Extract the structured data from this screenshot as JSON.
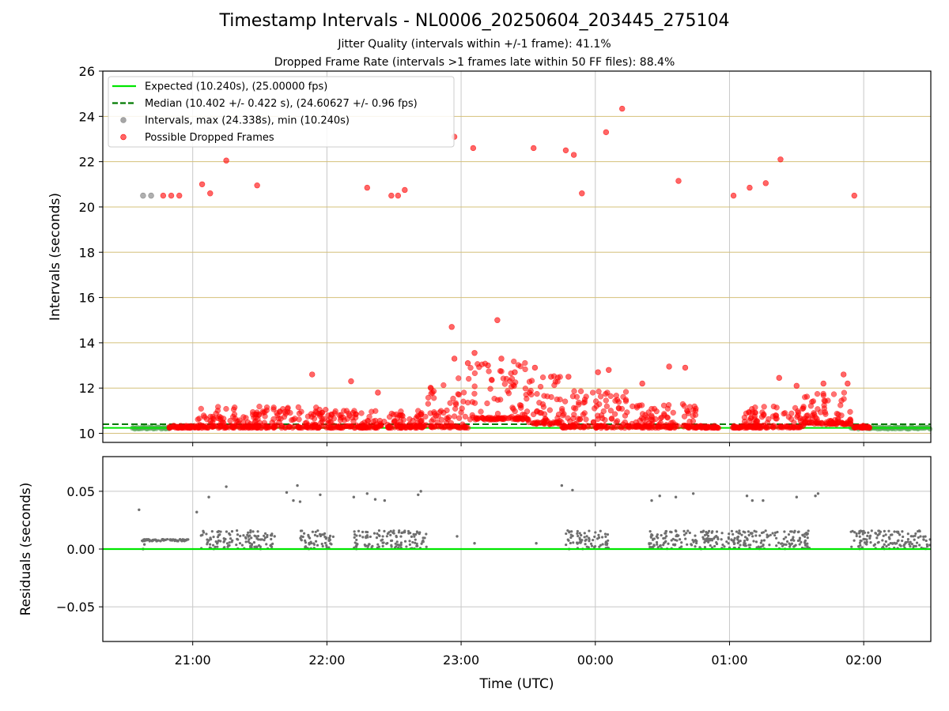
{
  "title": "Timestamp Intervals - NL0006_20250604_203445_275104",
  "subtitle1": "Jitter Quality (intervals within +/-1 frame): 41.1%",
  "subtitle2": "Dropped Frame Rate (intervals >1 frames late within 50 FF files): 88.4%",
  "colors": {
    "expected": "#00e600",
    "median": "#007a00",
    "intervals": "#a6a6a6",
    "dropped": "#ff0000",
    "residuals": "#6e6e6e",
    "hgrid_top": "#d4c07a",
    "grid": "#c8c8c8"
  },
  "chart_data": [
    {
      "type": "scatter",
      "name": "intervals",
      "ylabel": "Intervals (seconds)",
      "xlabel": "",
      "xlim": [
        20.33,
        26.5
      ],
      "ylim": [
        9.6,
        26
      ],
      "yticks": [
        10,
        12,
        14,
        16,
        18,
        20,
        22,
        24,
        26
      ],
      "ytick_labels": [
        "10",
        "12",
        "14",
        "16",
        "18",
        "20",
        "22",
        "24",
        "26"
      ],
      "xticks": [
        21,
        22,
        23,
        24,
        25,
        26
      ],
      "grid": true,
      "legend_position": "top-left",
      "legend": [
        "Expected (10.240s), (25.00000 fps)",
        "Median (10.402 +/- 0.422 s), (24.60627 +/- 0.96 fps)",
        "Intervals, max (24.338s), min (10.240s)",
        "Possible Dropped Frames"
      ],
      "expected": 10.24,
      "median": 10.402,
      "series": [
        {
          "name": "Intervals, max (24.338s), min (10.240s)",
          "kind": "gray",
          "points": [
            [
              20.63,
              20.5
            ],
            [
              20.69,
              20.5
            ]
          ],
          "baseline_segments": [
            [
              20.55,
              20.83
            ],
            [
              25.9,
              26.5
            ]
          ]
        },
        {
          "name": "Possible Dropped Frames",
          "kind": "red",
          "points": [
            [
              20.78,
              20.5
            ],
            [
              20.84,
              20.5
            ],
            [
              20.9,
              20.5
            ],
            [
              21.07,
              21.0
            ],
            [
              21.13,
              20.6
            ],
            [
              21.25,
              22.05
            ],
            [
              21.48,
              20.95
            ],
            [
              21.89,
              12.6
            ],
            [
              22.18,
              12.3
            ],
            [
              22.3,
              20.85
            ],
            [
              22.38,
              11.8
            ],
            [
              22.48,
              20.5
            ],
            [
              22.53,
              20.5
            ],
            [
              22.58,
              20.75
            ],
            [
              22.93,
              14.7
            ],
            [
              22.95,
              23.1
            ],
            [
              23.09,
              22.6
            ],
            [
              23.27,
              15.0
            ],
            [
              23.54,
              22.6
            ],
            [
              23.78,
              22.5
            ],
            [
              23.84,
              22.3
            ],
            [
              23.9,
              20.6
            ],
            [
              24.08,
              23.3
            ],
            [
              24.2,
              24.34
            ],
            [
              24.62,
              21.15
            ],
            [
              25.03,
              20.5
            ],
            [
              25.15,
              20.85
            ],
            [
              25.27,
              21.05
            ],
            [
              25.38,
              22.1
            ],
            [
              25.93,
              20.5
            ],
            [
              22.95,
              13.3
            ],
            [
              23.05,
              13.1
            ],
            [
              23.1,
              13.55
            ],
            [
              23.2,
              13.0
            ],
            [
              23.3,
              13.3
            ],
            [
              23.4,
              12.7
            ],
            [
              23.55,
              12.9
            ],
            [
              23.67,
              12.5
            ],
            [
              23.8,
              12.5
            ],
            [
              24.02,
              12.7
            ],
            [
              24.1,
              12.8
            ],
            [
              24.35,
              12.2
            ],
            [
              24.55,
              12.95
            ],
            [
              24.67,
              12.9
            ],
            [
              25.37,
              12.45
            ],
            [
              25.5,
              12.1
            ],
            [
              25.7,
              12.2
            ],
            [
              25.85,
              12.6
            ],
            [
              25.88,
              12.2
            ]
          ],
          "dense_bands": [
            {
              "x": [
                20.82,
                21.03
              ],
              "y": [
                10.24,
                10.3
              ]
            },
            {
              "x": [
                21.03,
                22.0
              ],
              "y": [
                10.24,
                11.2
              ]
            },
            {
              "x": [
                22.0,
                22.75
              ],
              "y": [
                10.24,
                11.0
              ]
            },
            {
              "x": [
                22.75,
                23.05
              ],
              "y": [
                10.24,
                12.5
              ]
            },
            {
              "x": [
                23.05,
                23.5
              ],
              "y": [
                10.6,
                13.2
              ]
            },
            {
              "x": [
                23.5,
                23.75
              ],
              "y": [
                10.4,
                12.6
              ]
            },
            {
              "x": [
                23.75,
                24.25
              ],
              "y": [
                10.24,
                12.0
              ]
            },
            {
              "x": [
                24.25,
                24.75
              ],
              "y": [
                10.24,
                11.3
              ]
            },
            {
              "x": [
                24.75,
                24.92
              ],
              "y": [
                10.24,
                10.3
              ]
            },
            {
              "x": [
                25.02,
                25.1
              ],
              "y": [
                10.24,
                10.3
              ]
            },
            {
              "x": [
                25.1,
                25.55
              ],
              "y": [
                10.24,
                11.2
              ]
            },
            {
              "x": [
                25.55,
                25.92
              ],
              "y": [
                10.4,
                11.8
              ]
            },
            {
              "x": [
                25.92,
                26.05
              ],
              "y": [
                10.24,
                10.3
              ]
            }
          ]
        }
      ]
    },
    {
      "type": "scatter",
      "name": "residuals",
      "ylabel": "Residuals (seconds)",
      "xlabel": "Time (UTC)",
      "xlim": [
        20.33,
        26.5
      ],
      "ylim": [
        -0.08,
        0.08
      ],
      "yticks": [
        0.05,
        0.0,
        -0.05
      ],
      "ytick_labels": [
        "0.05",
        "0.00",
        "−0.05"
      ],
      "xticks": [
        21,
        22,
        23,
        24,
        25,
        26
      ],
      "xtick_labels": [
        "21:00",
        "22:00",
        "23:00",
        "00:00",
        "01:00",
        "02:00"
      ],
      "grid": true,
      "zero_line": 0.0,
      "series": [
        {
          "name": "residuals",
          "points": [
            [
              20.6,
              0.034
            ],
            [
              21.03,
              0.032
            ],
            [
              21.12,
              0.045
            ],
            [
              21.25,
              0.054
            ],
            [
              21.7,
              0.049
            ],
            [
              21.75,
              0.042
            ],
            [
              21.78,
              0.055
            ],
            [
              21.8,
              0.041
            ],
            [
              21.95,
              0.047
            ],
            [
              22.2,
              0.045
            ],
            [
              22.3,
              0.048
            ],
            [
              22.36,
              0.043
            ],
            [
              22.43,
              0.042
            ],
            [
              22.68,
              0.047
            ],
            [
              22.7,
              0.05
            ],
            [
              23.75,
              0.055
            ],
            [
              23.83,
              0.051
            ],
            [
              24.42,
              0.042
            ],
            [
              24.48,
              0.046
            ],
            [
              24.6,
              0.045
            ],
            [
              24.73,
              0.048
            ],
            [
              25.13,
              0.046
            ],
            [
              25.17,
              0.042
            ],
            [
              25.25,
              0.042
            ],
            [
              25.5,
              0.045
            ],
            [
              25.64,
              0.046
            ],
            [
              25.66,
              0.048
            ],
            [
              23.1,
              0.005
            ],
            [
              22.97,
              0.011
            ],
            [
              23.56,
              0.005
            ],
            [
              21.61,
              0.011
            ],
            [
              21.58,
              0.003
            ],
            [
              20.63,
              0.0
            ],
            [
              20.64,
              0.004
            ]
          ],
          "dense_bands": [
            {
              "x": [
                20.62,
                20.97
              ],
              "y": [
                0.0068,
                0.0085
              ]
            },
            {
              "x": [
                21.06,
                21.3
              ],
              "y": [
                0.0,
                0.016
              ]
            },
            {
              "x": [
                21.32,
                21.6
              ],
              "y": [
                0.0,
                0.016
              ]
            },
            {
              "x": [
                21.8,
                22.05
              ],
              "y": [
                0.0,
                0.016
              ]
            },
            {
              "x": [
                22.2,
                22.75
              ],
              "y": [
                0.0,
                0.016
              ]
            },
            {
              "x": [
                23.78,
                24.1
              ],
              "y": [
                0.0,
                0.016
              ]
            },
            {
              "x": [
                24.4,
                24.75
              ],
              "y": [
                0.0,
                0.016
              ]
            },
            {
              "x": [
                24.75,
                25.1
              ],
              "y": [
                0.0,
                0.016
              ]
            },
            {
              "x": [
                25.1,
                25.6
              ],
              "y": [
                0.0,
                0.016
              ]
            },
            {
              "x": [
                25.9,
                26.5
              ],
              "y": [
                0.0,
                0.016
              ]
            }
          ]
        }
      ]
    }
  ]
}
